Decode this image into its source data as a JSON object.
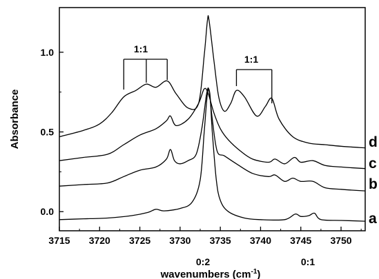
{
  "chart_data": {
    "type": "line",
    "xlabel": "wavenumbers (cm",
    "xlabel_sup": "-1",
    "xlabel_end": ")",
    "ylabel": "Absorbance",
    "xlim": [
      3715,
      3753
    ],
    "ylim": [
      -0.12,
      1.28
    ],
    "xticks": [
      3715,
      3720,
      3725,
      3730,
      3735,
      3740,
      3745,
      3750
    ],
    "yticks": [
      {
        "value": 0.0,
        "label": "0.0"
      },
      {
        "value": 0.5,
        "label": "0.5"
      },
      {
        "value": 1.0,
        "label": "1.0"
      }
    ],
    "series": [
      {
        "name": "a",
        "x": [
          3715,
          3718,
          3721,
          3724,
          3726,
          3727,
          3728,
          3730,
          3731.5,
          3732.5,
          3733,
          3733.4,
          3733.7,
          3734,
          3734.5,
          3735,
          3736,
          3738,
          3740,
          3743,
          3744.3,
          3745,
          3746,
          3746.7,
          3747.5,
          3750,
          3753
        ],
        "y": [
          -0.05,
          -0.045,
          -0.04,
          -0.025,
          -0.005,
          0.015,
          0.005,
          0.02,
          0.06,
          0.2,
          0.5,
          0.74,
          0.74,
          0.5,
          0.2,
          0.07,
          0.0,
          -0.04,
          -0.05,
          -0.05,
          -0.015,
          -0.03,
          -0.025,
          -0.01,
          -0.05,
          -0.055,
          -0.06
        ]
      },
      {
        "name": "b",
        "x": [
          3715,
          3718,
          3721,
          3723,
          3725,
          3727,
          3728.3,
          3728.8,
          3729.3,
          3730,
          3731,
          3732,
          3732.7,
          3733.3,
          3733.6,
          3734,
          3734.6,
          3735.5,
          3737,
          3739,
          3741,
          3741.8,
          3743,
          3744,
          3745,
          3746.5,
          3748,
          3750,
          3753
        ],
        "y": [
          0.16,
          0.17,
          0.18,
          0.22,
          0.26,
          0.28,
          0.33,
          0.39,
          0.32,
          0.3,
          0.32,
          0.36,
          0.52,
          0.74,
          0.76,
          0.58,
          0.38,
          0.35,
          0.3,
          0.24,
          0.22,
          0.23,
          0.19,
          0.21,
          0.19,
          0.19,
          0.15,
          0.14,
          0.13
        ]
      },
      {
        "name": "c",
        "x": [
          3715,
          3718,
          3721,
          3723,
          3725,
          3727,
          3728.3,
          3728.8,
          3729.5,
          3731,
          3732.3,
          3733,
          3733.5,
          3734.2,
          3735,
          3736,
          3737.5,
          3739,
          3741,
          3741.8,
          3743,
          3744.2,
          3745,
          3746.5,
          3748,
          3750,
          3753
        ],
        "y": [
          0.32,
          0.34,
          0.36,
          0.42,
          0.48,
          0.52,
          0.57,
          0.6,
          0.54,
          0.58,
          0.68,
          0.77,
          0.74,
          0.62,
          0.52,
          0.45,
          0.38,
          0.33,
          0.31,
          0.33,
          0.3,
          0.34,
          0.31,
          0.32,
          0.29,
          0.28,
          0.27
        ]
      },
      {
        "name": "d",
        "x": [
          3715,
          3718,
          3720,
          3721.5,
          3723,
          3724.5,
          3725.8,
          3727,
          3728.4,
          3729.5,
          3731,
          3732.3,
          3733,
          3733.4,
          3733.6,
          3734.2,
          3734.8,
          3735.5,
          3736.3,
          3737,
          3738,
          3739.5,
          3740.6,
          3741.4,
          3742.3,
          3744,
          3746,
          3748,
          3750,
          3753
        ],
        "y": [
          0.47,
          0.51,
          0.55,
          0.62,
          0.72,
          0.76,
          0.8,
          0.78,
          0.82,
          0.74,
          0.65,
          0.68,
          0.98,
          1.2,
          1.2,
          0.95,
          0.72,
          0.63,
          0.68,
          0.76,
          0.72,
          0.6,
          0.66,
          0.71,
          0.58,
          0.47,
          0.43,
          0.42,
          0.41,
          0.4
        ]
      }
    ],
    "curve_labels": [
      "a",
      "b",
      "c",
      "d"
    ],
    "annotations": [
      "1:1",
      "1:1",
      "0:2",
      "0:1"
    ]
  }
}
